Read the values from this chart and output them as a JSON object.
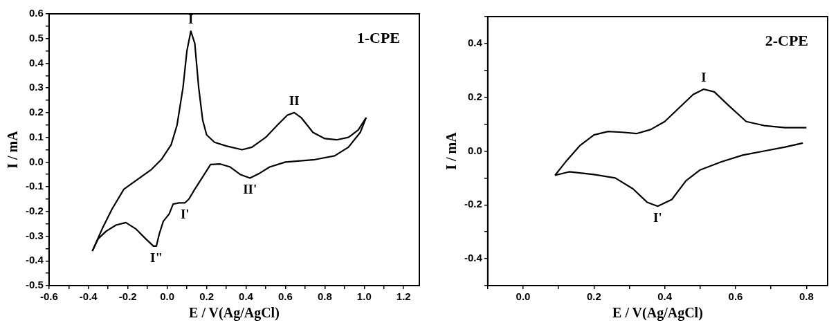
{
  "chart_data": [
    {
      "type": "line",
      "xlabel": "E / V(Ag/AgCl)",
      "ylabel": "I / mA",
      "marker": "none",
      "line_style": "solid",
      "xlim": [
        -0.6,
        1.28
      ],
      "ylim": [
        -0.5,
        0.6
      ],
      "xticks": [
        -0.6,
        {
          "value": -0.5,
          "label": null
        },
        -0.4,
        {
          "value": -0.3,
          "label": null
        },
        -0.2,
        {
          "value": -0.1,
          "label": null
        },
        {
          "value": 0,
          "label": "0.0"
        },
        {
          "value": 0.1,
          "label": null
        },
        0.2,
        {
          "value": 0.3,
          "label": null
        },
        0.4,
        {
          "value": 0.5,
          "label": null
        },
        0.6,
        {
          "value": 0.7,
          "label": null
        },
        0.8,
        {
          "value": 0.9,
          "label": null
        },
        {
          "value": 1,
          "label": "1.0"
        },
        {
          "value": 1.1,
          "label": null
        },
        1.2
      ],
      "yticks": [
        -0.5,
        {
          "value": -0.45,
          "label": null
        },
        -0.4,
        {
          "value": -0.35,
          "label": null
        },
        -0.3,
        {
          "value": -0.25,
          "label": null
        },
        -0.2,
        {
          "value": -0.15,
          "label": null
        },
        -0.1,
        {
          "value": -0.05,
          "label": null
        },
        {
          "value": 0,
          "label": "0.0"
        },
        {
          "value": 0.05,
          "label": null
        },
        0.1,
        {
          "value": 0.15,
          "label": null
        },
        0.2,
        {
          "value": 0.25,
          "label": null
        },
        0.3,
        {
          "value": 0.35,
          "label": null
        },
        0.4,
        {
          "value": 0.45,
          "label": null
        },
        0.5,
        {
          "value": 0.55,
          "label": null
        },
        0.6
      ],
      "annotations": [
        "1-CPE",
        {
          "text": "I",
          "x": 0.12,
          "y": 0.53
        },
        {
          "text": "II",
          "x": 0.645,
          "y": 0.2
        },
        {
          "text": "II'",
          "x": 0.42,
          "y": -0.065
        },
        {
          "text": "I'",
          "x": 0.09,
          "y": -0.165
        },
        {
          "text": "I\"",
          "x": -0.055,
          "y": -0.34
        }
      ],
      "series": [
        {
          "color": "#000000",
          "x": [
            -0.38,
            -0.33,
            -0.28,
            -0.22,
            -0.15,
            -0.08,
            -0.03,
            0.02,
            0.05,
            0.08,
            0.1,
            0.12,
            0.14,
            0.16,
            0.18,
            0.2,
            0.24,
            0.3,
            0.38,
            0.43,
            0.5,
            0.56,
            0.61,
            0.645,
            0.68,
            0.74,
            0.8,
            0.86,
            0.92,
            0.97,
            1.01
          ],
          "values": [
            -0.36,
            -0.27,
            -0.19,
            -0.11,
            -0.07,
            -0.03,
            0.01,
            0.07,
            0.15,
            0.3,
            0.45,
            0.53,
            0.48,
            0.3,
            0.17,
            0.11,
            0.08,
            0.065,
            0.05,
            0.06,
            0.1,
            0.15,
            0.19,
            0.2,
            0.18,
            0.12,
            0.095,
            0.09,
            0.1,
            0.13,
            0.18
          ]
        },
        {
          "color": "#000000",
          "x": [
            1.01,
            0.98,
            0.92,
            0.85,
            0.75,
            0.6,
            0.52,
            0.47,
            0.42,
            0.37,
            0.32,
            0.27,
            0.22,
            0.18,
            0.14,
            0.11,
            0.09,
            0.06,
            0.03,
            0.01,
            -0.02,
            -0.04,
            -0.055,
            -0.07,
            -0.11,
            -0.16,
            -0.21,
            -0.26,
            -0.31,
            -0.35,
            -0.38
          ],
          "values": [
            0.18,
            0.12,
            0.06,
            0.025,
            0.01,
            0.0,
            -0.02,
            -0.045,
            -0.065,
            -0.05,
            -0.02,
            -0.008,
            -0.01,
            -0.06,
            -0.11,
            -0.15,
            -0.165,
            -0.165,
            -0.17,
            -0.21,
            -0.24,
            -0.29,
            -0.34,
            -0.34,
            -0.31,
            -0.27,
            -0.245,
            -0.255,
            -0.28,
            -0.31,
            -0.36
          ]
        }
      ]
    },
    {
      "type": "line",
      "xlabel": "E / V(Ag/AgCl)",
      "ylabel": "I / mA",
      "marker": "none",
      "line_style": "solid",
      "xlim": [
        -0.1,
        0.86
      ],
      "ylim": [
        -0.5,
        0.5
      ],
      "xticks": [
        {
          "value": -0.1,
          "label": null
        },
        {
          "value": 0,
          "label": "0.0"
        },
        {
          "value": 0.1,
          "label": null
        },
        0.2,
        {
          "value": 0.3,
          "label": null
        },
        0.4,
        {
          "value": 0.5,
          "label": null
        },
        0.6,
        {
          "value": 0.7,
          "label": null
        },
        0.8
      ],
      "yticks": [
        {
          "value": -0.5,
          "label": null
        },
        -0.4,
        {
          "value": -0.3,
          "label": null
        },
        -0.2,
        {
          "value": -0.1,
          "label": null
        },
        {
          "value": 0,
          "label": "0.0"
        },
        {
          "value": 0.1,
          "label": null
        },
        0.2,
        {
          "value": 0.3,
          "label": null
        },
        0.4,
        {
          "value": 0.5,
          "label": null
        }
      ],
      "annotations": [
        "2-CPE",
        {
          "text": "I",
          "x": 0.51,
          "y": 0.23
        },
        {
          "text": "I'",
          "x": 0.38,
          "y": -0.205
        }
      ],
      "series": [
        {
          "color": "#000000",
          "x": [
            0.09,
            0.12,
            0.16,
            0.2,
            0.24,
            0.28,
            0.32,
            0.36,
            0.4,
            0.44,
            0.48,
            0.51,
            0.54,
            0.58,
            0.63,
            0.68,
            0.74,
            0.8
          ],
          "values": [
            -0.09,
            -0.04,
            0.02,
            0.06,
            0.073,
            0.07,
            0.065,
            0.08,
            0.11,
            0.16,
            0.21,
            0.23,
            0.22,
            0.17,
            0.11,
            0.095,
            0.087,
            0.087
          ]
        },
        {
          "color": "#000000",
          "x": [
            0.79,
            0.74,
            0.68,
            0.62,
            0.56,
            0.5,
            0.46,
            0.42,
            0.38,
            0.35,
            0.31,
            0.26,
            0.2,
            0.13,
            0.09
          ],
          "values": [
            0.03,
            0.015,
            0.0,
            -0.015,
            -0.04,
            -0.07,
            -0.11,
            -0.18,
            -0.205,
            -0.19,
            -0.14,
            -0.1,
            -0.087,
            -0.077,
            -0.09
          ]
        }
      ]
    }
  ]
}
